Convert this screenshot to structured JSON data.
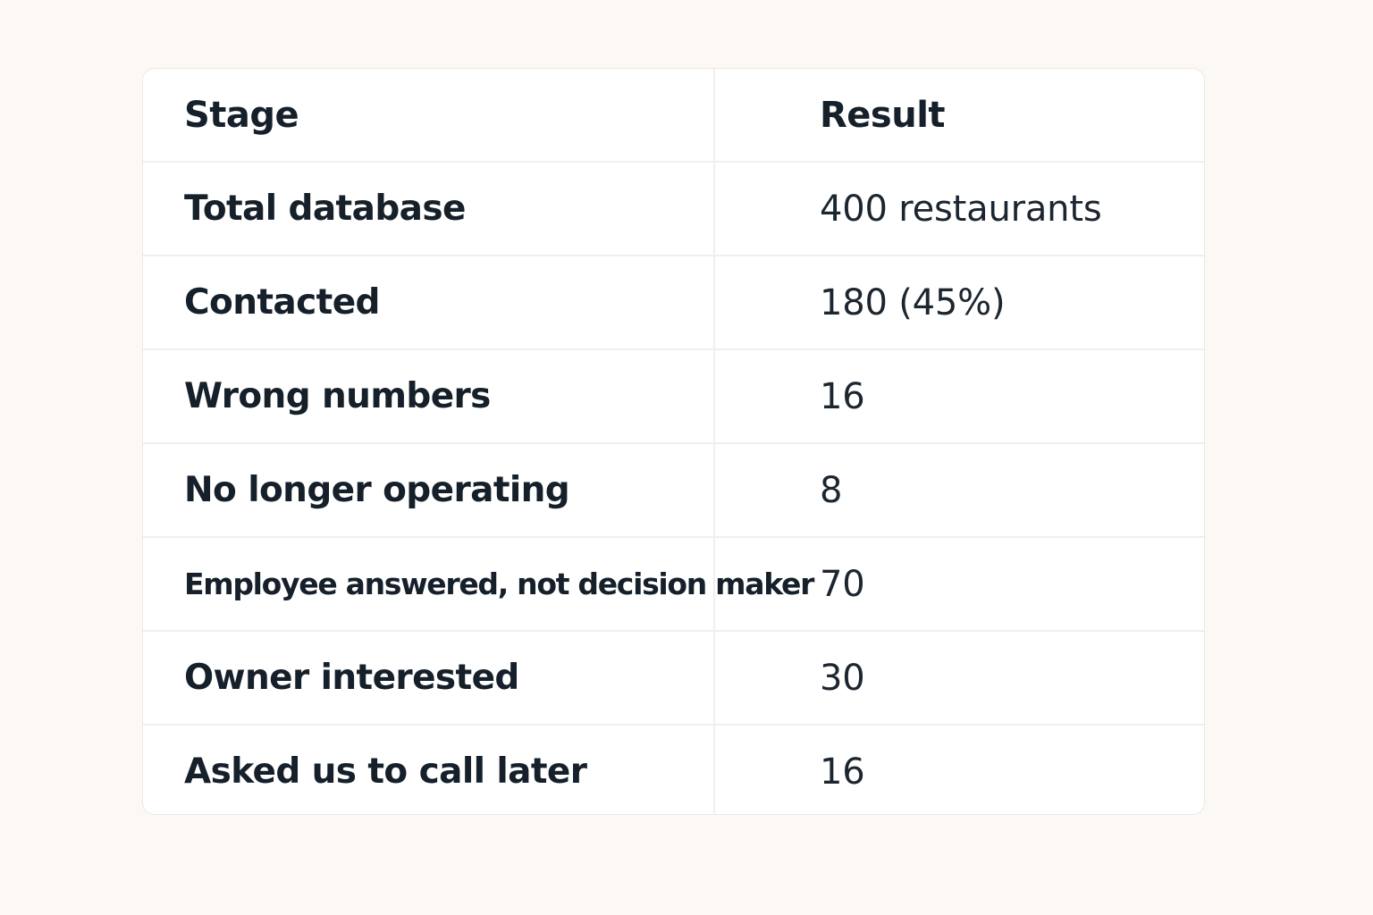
{
  "table": {
    "headers": {
      "stage": "Stage",
      "result": "Result"
    },
    "rows": [
      {
        "stage": "Total database",
        "result": "400 restaurants"
      },
      {
        "stage": "Contacted",
        "result": "180 (45%)"
      },
      {
        "stage": "Wrong numbers",
        "result": "16"
      },
      {
        "stage": "No longer operating",
        "result": "8"
      },
      {
        "stage": "Employee answered, not decision maker",
        "result": "70"
      },
      {
        "stage": "Owner interested",
        "result": "30"
      },
      {
        "stage": "Asked us to call later",
        "result": "16"
      }
    ]
  }
}
